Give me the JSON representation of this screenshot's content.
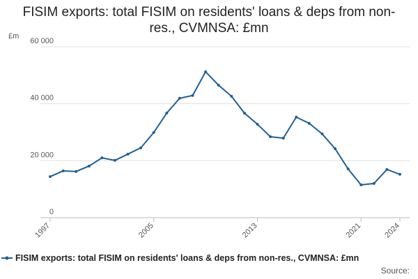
{
  "chart_data": {
    "type": "line",
    "title": "FISIM exports: total FISIM on residents' loans & deps from non-res., CVMNSA: £mn",
    "y_label": "£m",
    "source": "Source:",
    "x": [
      1997,
      1998,
      1999,
      2000,
      2001,
      2002,
      2003,
      2004,
      2005,
      2006,
      2007,
      2008,
      2009,
      2010,
      2011,
      2012,
      2013,
      2014,
      2015,
      2016,
      2017,
      2018,
      2019,
      2020,
      2021,
      2022,
      2023,
      2024
    ],
    "series": [
      {
        "name": "FISIM exports: total FISIM on residents' loans & deps from non-res., CVMNSA: £mn",
        "color": "#206095",
        "values": [
          14400,
          16400,
          16200,
          18100,
          21000,
          20100,
          22300,
          24500,
          29900,
          36700,
          41900,
          42900,
          51200,
          46500,
          42600,
          36700,
          32800,
          28400,
          27900,
          35300,
          33100,
          29400,
          24200,
          17100,
          11500,
          12000,
          16900,
          15200
        ]
      }
    ],
    "xlim": [
      1997,
      2024
    ],
    "xticks": [
      1997,
      2005,
      2013,
      2021,
      2024
    ],
    "ylim": [
      0,
      60000
    ],
    "yticks": [
      0,
      {
        "value": 20000,
        "label": "20 000"
      },
      {
        "value": 40000,
        "label": "40 000"
      },
      {
        "value": 60000,
        "label": "60 000"
      }
    ],
    "grid": true
  }
}
